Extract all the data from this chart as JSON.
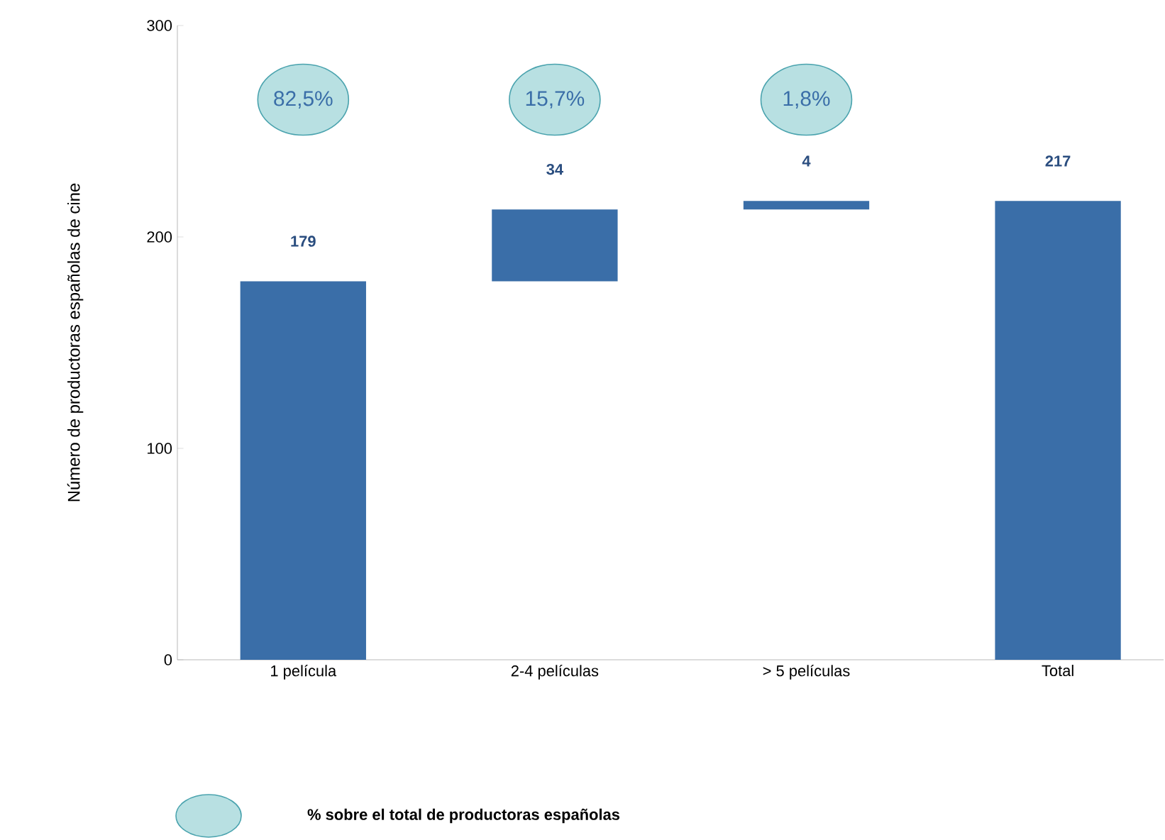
{
  "chart_data": {
    "type": "bar",
    "categories": [
      "1 película",
      "2-4 películas",
      "> 5 películas",
      "Total"
    ],
    "values": [
      179,
      34,
      4,
      217
    ],
    "base": [
      0,
      179,
      213,
      0
    ],
    "color": "#3a6ea8",
    "data_labels": true,
    "ylabel": "Número de productoras españolas de cine",
    "ylim": [
      0,
      300
    ],
    "yticks": [
      0,
      100,
      200,
      300
    ],
    "grid": false,
    "annotations": [
      "82,5%",
      "15,7%",
      "1,8%",
      "% sobre el total de productoras españolas"
    ]
  }
}
